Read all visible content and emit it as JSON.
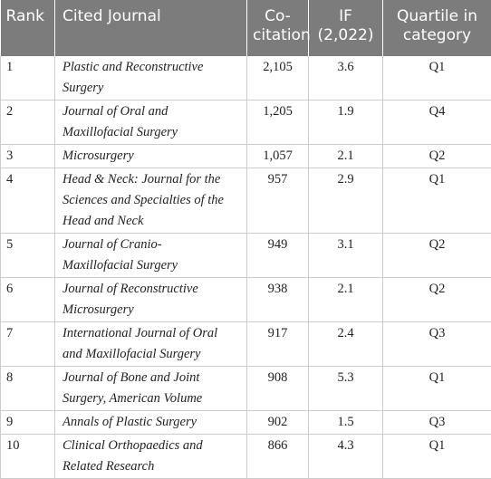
{
  "table": {
    "headers": [
      "Rank",
      "Cited Journal",
      "Co-citation",
      "IF (2,022)",
      "Quartile in category"
    ],
    "rows": [
      [
        "1",
        "Plastic and Reconstructive Surgery",
        "2,105",
        "3.6",
        "Q1"
      ],
      [
        "2",
        "Journal of Oral and Maxillofacial Surgery",
        "1,205",
        "1.9",
        "Q4"
      ],
      [
        "3",
        "Microsurgery",
        "1,057",
        "2.1",
        "Q2"
      ],
      [
        "4",
        "Head & Neck: Journal for the Sciences and Specialties of the Head and Neck",
        "957",
        "2.9",
        "Q1"
      ],
      [
        "5",
        "Journal of Cranio-Maxillofacial Surgery",
        "949",
        "3.1",
        "Q2"
      ],
      [
        "6",
        "Journal of Reconstructive Microsurgery",
        "938",
        "2.1",
        "Q2"
      ],
      [
        "7",
        "International Journal of Oral and Maxillofacial Surgery",
        "917",
        "2.4",
        "Q3"
      ],
      [
        "8",
        "Journal of Bone and Joint Surgery, American Volume",
        "908",
        "5.3",
        "Q1"
      ],
      [
        "9",
        "Annals of Plastic Surgery",
        "902",
        "1.5",
        "Q3"
      ],
      [
        "10",
        "Clinical Orthopaedics and Related Research",
        "866",
        "4.3",
        "Q1"
      ]
    ]
  }
}
